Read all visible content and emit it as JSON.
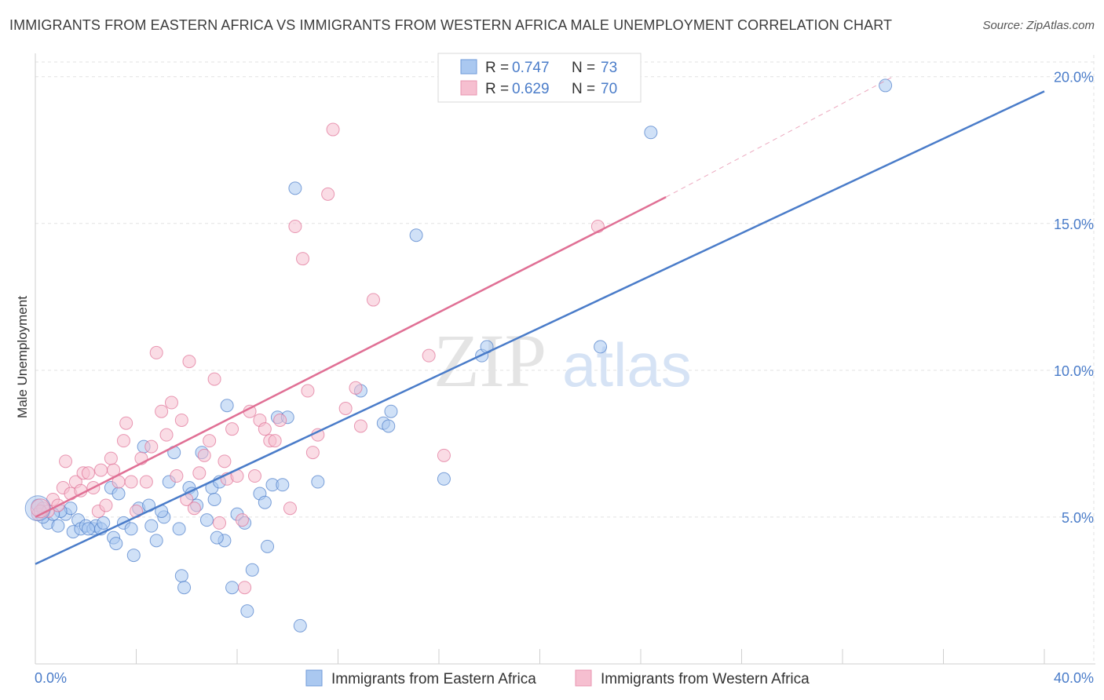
{
  "title": "IMMIGRANTS FROM EASTERN AFRICA VS IMMIGRANTS FROM WESTERN AFRICA MALE UNEMPLOYMENT CORRELATION CHART",
  "source": "Source: ZipAtlas.com",
  "watermark": {
    "zip": "ZIP",
    "atlas": "atlas"
  },
  "legend": {
    "r_label": "R =",
    "n_label": "N =",
    "entries": [
      {
        "r": "0.747",
        "n": "73"
      },
      {
        "r": "0.629",
        "n": "70"
      }
    ]
  },
  "chart_data": {
    "type": "scatter",
    "title": "IMMIGRANTS FROM EASTERN AFRICA VS IMMIGRANTS FROM WESTERN AFRICA MALE UNEMPLOYMENT CORRELATION CHART",
    "xlabel": "",
    "ylabel": "Male Unemployment",
    "xlim": [
      0,
      40
    ],
    "ylim": [
      0,
      20.5
    ],
    "x_tick_labels": [
      "0.0%",
      "40.0%"
    ],
    "y_ticks": [
      5,
      10,
      15,
      20
    ],
    "y_tick_labels": [
      "5.0%",
      "10.0%",
      "15.0%",
      "20.0%"
    ],
    "grid": true,
    "legend_position": "top-center",
    "series": [
      {
        "name": "Immigrants from Eastern Africa",
        "color": "#4a7cc9",
        "fill": "#aac8f0",
        "trend": {
          "x0": 0,
          "y0": 3.4,
          "x1": 40,
          "y1": 19.5
        },
        "points": [
          [
            0.1,
            5.4
          ],
          [
            0.5,
            4.8
          ],
          [
            0.9,
            4.7
          ],
          [
            1.2,
            5.1
          ],
          [
            1.4,
            5.3
          ],
          [
            1.5,
            4.5
          ],
          [
            1.7,
            4.9
          ],
          [
            1.8,
            4.6
          ],
          [
            2.0,
            4.7
          ],
          [
            2.3,
            4.6
          ],
          [
            2.4,
            4.7
          ],
          [
            2.6,
            4.6
          ],
          [
            2.7,
            4.8
          ],
          [
            3.1,
            4.3
          ],
          [
            3.2,
            4.1
          ],
          [
            3.5,
            4.8
          ],
          [
            3.8,
            4.6
          ],
          [
            3.9,
            3.7
          ],
          [
            4.1,
            5.3
          ],
          [
            4.3,
            7.4
          ],
          [
            4.5,
            5.4
          ],
          [
            4.8,
            4.2
          ],
          [
            5.1,
            5.0
          ],
          [
            5.3,
            6.2
          ],
          [
            5.5,
            7.2
          ],
          [
            5.7,
            4.6
          ],
          [
            5.8,
            3.0
          ],
          [
            5.9,
            2.6
          ],
          [
            6.1,
            6.0
          ],
          [
            6.4,
            5.4
          ],
          [
            6.6,
            7.2
          ],
          [
            6.8,
            4.9
          ],
          [
            7.0,
            6.0
          ],
          [
            7.1,
            5.6
          ],
          [
            7.3,
            6.2
          ],
          [
            7.5,
            4.2
          ],
          [
            7.6,
            8.8
          ],
          [
            7.8,
            2.6
          ],
          [
            8.0,
            5.1
          ],
          [
            8.3,
            4.8
          ],
          [
            8.4,
            1.8
          ],
          [
            8.6,
            3.2
          ],
          [
            8.9,
            5.8
          ],
          [
            9.1,
            5.5
          ],
          [
            9.2,
            4.0
          ],
          [
            9.4,
            6.1
          ],
          [
            9.6,
            8.4
          ],
          [
            10.0,
            8.4
          ],
          [
            10.5,
            1.3
          ],
          [
            11.2,
            6.2
          ],
          [
            12.9,
            9.3
          ],
          [
            13.8,
            8.2
          ],
          [
            14.0,
            8.1
          ],
          [
            14.1,
            8.6
          ],
          [
            15.1,
            14.6
          ],
          [
            16.2,
            6.3
          ],
          [
            17.7,
            10.5
          ],
          [
            17.9,
            10.8
          ],
          [
            22.4,
            10.8
          ],
          [
            24.4,
            18.1
          ],
          [
            33.7,
            19.7
          ],
          [
            3.0,
            6.0
          ],
          [
            3.3,
            5.8
          ],
          [
            1.0,
            5.2
          ],
          [
            0.3,
            5.0
          ],
          [
            5.0,
            5.2
          ],
          [
            2.1,
            4.6
          ],
          [
            6.2,
            5.8
          ],
          [
            7.2,
            4.3
          ],
          [
            9.8,
            6.1
          ],
          [
            0.7,
            5.1
          ],
          [
            10.3,
            16.2
          ],
          [
            4.6,
            4.7
          ]
        ]
      },
      {
        "name": "Immigrants from Western Africa",
        "color": "#e07095",
        "fill": "#f6bfd0",
        "trend": {
          "x0": 0,
          "y0": 5.0,
          "x1": 25,
          "y1": 15.9
        },
        "trend_ext": {
          "x0": 25,
          "y0": 15.9,
          "x1": 34,
          "y1": 20.0
        },
        "points": [
          [
            0.1,
            5.1
          ],
          [
            0.3,
            5.3
          ],
          [
            0.5,
            5.2
          ],
          [
            0.7,
            5.6
          ],
          [
            0.9,
            5.4
          ],
          [
            1.1,
            6.0
          ],
          [
            1.2,
            6.9
          ],
          [
            1.4,
            5.8
          ],
          [
            1.6,
            6.2
          ],
          [
            1.8,
            5.9
          ],
          [
            1.9,
            6.5
          ],
          [
            2.1,
            6.5
          ],
          [
            2.3,
            6.0
          ],
          [
            2.5,
            5.2
          ],
          [
            2.6,
            6.6
          ],
          [
            2.8,
            5.4
          ],
          [
            3.0,
            7.0
          ],
          [
            3.1,
            6.6
          ],
          [
            3.3,
            6.2
          ],
          [
            3.5,
            7.6
          ],
          [
            3.6,
            8.2
          ],
          [
            3.8,
            6.2
          ],
          [
            4.0,
            5.2
          ],
          [
            4.2,
            7.0
          ],
          [
            4.4,
            6.2
          ],
          [
            4.6,
            7.4
          ],
          [
            4.8,
            10.6
          ],
          [
            5.0,
            8.6
          ],
          [
            5.2,
            7.8
          ],
          [
            5.4,
            8.9
          ],
          [
            5.6,
            6.4
          ],
          [
            5.8,
            8.3
          ],
          [
            6.0,
            5.6
          ],
          [
            6.1,
            10.3
          ],
          [
            6.3,
            5.3
          ],
          [
            6.5,
            6.5
          ],
          [
            6.7,
            7.1
          ],
          [
            6.9,
            7.6
          ],
          [
            7.1,
            9.7
          ],
          [
            7.3,
            4.8
          ],
          [
            7.5,
            6.9
          ],
          [
            7.6,
            6.3
          ],
          [
            7.8,
            8.0
          ],
          [
            8.0,
            6.4
          ],
          [
            8.2,
            4.9
          ],
          [
            8.3,
            2.6
          ],
          [
            8.5,
            8.6
          ],
          [
            8.7,
            6.4
          ],
          [
            8.9,
            8.3
          ],
          [
            9.1,
            8.0
          ],
          [
            9.3,
            7.6
          ],
          [
            9.5,
            7.6
          ],
          [
            9.7,
            8.3
          ],
          [
            10.1,
            5.3
          ],
          [
            10.3,
            14.9
          ],
          [
            10.6,
            13.8
          ],
          [
            10.8,
            9.3
          ],
          [
            11.0,
            7.2
          ],
          [
            11.2,
            7.8
          ],
          [
            11.6,
            16.0
          ],
          [
            11.8,
            18.2
          ],
          [
            12.3,
            8.7
          ],
          [
            12.7,
            9.4
          ],
          [
            12.9,
            8.1
          ],
          [
            13.4,
            12.4
          ],
          [
            15.6,
            10.5
          ],
          [
            16.2,
            7.1
          ],
          [
            16.9,
            20.0
          ],
          [
            22.3,
            14.9
          ],
          [
            0.2,
            5.2
          ]
        ]
      }
    ]
  }
}
